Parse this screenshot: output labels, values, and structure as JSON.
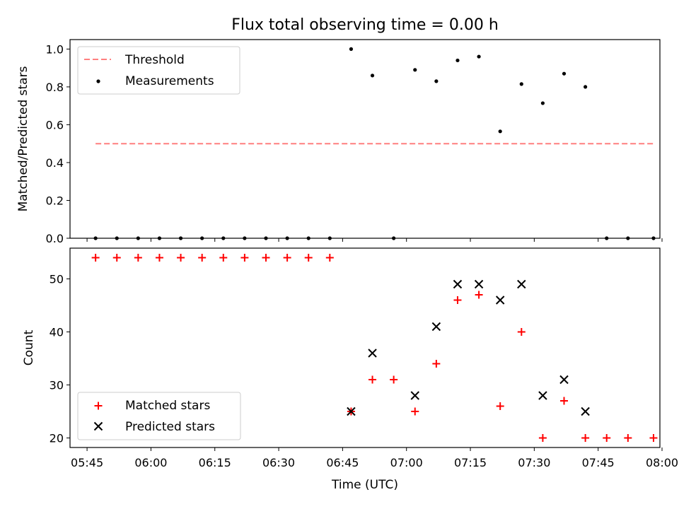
{
  "chart_data": [
    {
      "type": "scatter",
      "title": "Flux total observing time = 0.00 h",
      "xlabel": "",
      "ylabel": "Matched/Predicted stars",
      "ylim": [
        0,
        1.05
      ],
      "yticks": [
        0.0,
        0.2,
        0.4,
        0.6,
        0.8,
        1.0
      ],
      "ytick_labels": [
        "0.0",
        "0.2",
        "0.4",
        "0.6",
        "0.8",
        "1.0"
      ],
      "grid": false,
      "legend_position": "top-left",
      "threshold": {
        "name": "Threshold",
        "value": 0.5,
        "x_start": "05:47",
        "x_end": "07:58",
        "color": "#ff7f7f",
        "style": "dashed"
      },
      "series": [
        {
          "name": "Measurements",
          "color": "#000000",
          "marker": "dot",
          "points": [
            {
              "x": "05:47",
              "y": 0.0
            },
            {
              "x": "05:52",
              "y": 0.0
            },
            {
              "x": "05:57",
              "y": 0.0
            },
            {
              "x": "06:02",
              "y": 0.0
            },
            {
              "x": "06:07",
              "y": 0.0
            },
            {
              "x": "06:12",
              "y": 0.0
            },
            {
              "x": "06:17",
              "y": 0.0
            },
            {
              "x": "06:22",
              "y": 0.0
            },
            {
              "x": "06:27",
              "y": 0.0
            },
            {
              "x": "06:32",
              "y": 0.0
            },
            {
              "x": "06:37",
              "y": 0.0
            },
            {
              "x": "06:42",
              "y": 0.0
            },
            {
              "x": "06:47",
              "y": 1.0
            },
            {
              "x": "06:52",
              "y": 0.86
            },
            {
              "x": "06:57",
              "y": 0.0
            },
            {
              "x": "07:02",
              "y": 0.89
            },
            {
              "x": "07:07",
              "y": 0.83
            },
            {
              "x": "07:12",
              "y": 0.94
            },
            {
              "x": "07:17",
              "y": 0.96
            },
            {
              "x": "07:22",
              "y": 0.565
            },
            {
              "x": "07:27",
              "y": 0.815
            },
            {
              "x": "07:32",
              "y": 0.714
            },
            {
              "x": "07:37",
              "y": 0.87
            },
            {
              "x": "07:42",
              "y": 0.8
            },
            {
              "x": "07:47",
              "y": 0.0
            },
            {
              "x": "07:52",
              "y": 0.0
            },
            {
              "x": "07:58",
              "y": 0.0
            }
          ]
        }
      ]
    },
    {
      "type": "scatter",
      "title": "",
      "xlabel": "Time (UTC)",
      "ylabel": "Count",
      "ylim": [
        18.2,
        55.8
      ],
      "yticks": [
        20,
        30,
        40,
        50
      ],
      "ytick_labels": [
        "20",
        "30",
        "40",
        "50"
      ],
      "xticks": [
        "05:45",
        "06:00",
        "06:15",
        "06:30",
        "06:45",
        "07:00",
        "07:15",
        "07:30",
        "07:45",
        "08:00"
      ],
      "xlim": [
        "05:41",
        "07:59:30"
      ],
      "grid": false,
      "legend_position": "bottom-left",
      "series": [
        {
          "name": "Matched stars",
          "color": "#ff0000",
          "marker": "plus",
          "points": [
            {
              "x": "05:47",
              "y": 54
            },
            {
              "x": "05:52",
              "y": 54
            },
            {
              "x": "05:57",
              "y": 54
            },
            {
              "x": "06:02",
              "y": 54
            },
            {
              "x": "06:07",
              "y": 54
            },
            {
              "x": "06:12",
              "y": 54
            },
            {
              "x": "06:17",
              "y": 54
            },
            {
              "x": "06:22",
              "y": 54
            },
            {
              "x": "06:27",
              "y": 54
            },
            {
              "x": "06:32",
              "y": 54
            },
            {
              "x": "06:37",
              "y": 54
            },
            {
              "x": "06:42",
              "y": 54
            },
            {
              "x": "06:47",
              "y": 25
            },
            {
              "x": "06:52",
              "y": 31
            },
            {
              "x": "06:57",
              "y": 31
            },
            {
              "x": "07:02",
              "y": 25
            },
            {
              "x": "07:07",
              "y": 34
            },
            {
              "x": "07:12",
              "y": 46
            },
            {
              "x": "07:17",
              "y": 47
            },
            {
              "x": "07:22",
              "y": 26
            },
            {
              "x": "07:27",
              "y": 40
            },
            {
              "x": "07:32",
              "y": 20
            },
            {
              "x": "07:37",
              "y": 27
            },
            {
              "x": "07:42",
              "y": 20
            },
            {
              "x": "07:47",
              "y": 20
            },
            {
              "x": "07:52",
              "y": 20
            },
            {
              "x": "07:58",
              "y": 20
            }
          ]
        },
        {
          "name": "Predicted stars",
          "color": "#000000",
          "marker": "x",
          "points": [
            {
              "x": "06:47",
              "y": 25
            },
            {
              "x": "06:52",
              "y": 36
            },
            {
              "x": "07:02",
              "y": 28
            },
            {
              "x": "07:07",
              "y": 41
            },
            {
              "x": "07:12",
              "y": 49
            },
            {
              "x": "07:17",
              "y": 49
            },
            {
              "x": "07:22",
              "y": 46
            },
            {
              "x": "07:27",
              "y": 49
            },
            {
              "x": "07:32",
              "y": 28
            },
            {
              "x": "07:37",
              "y": 31
            },
            {
              "x": "07:42",
              "y": 25
            }
          ]
        }
      ]
    }
  ]
}
